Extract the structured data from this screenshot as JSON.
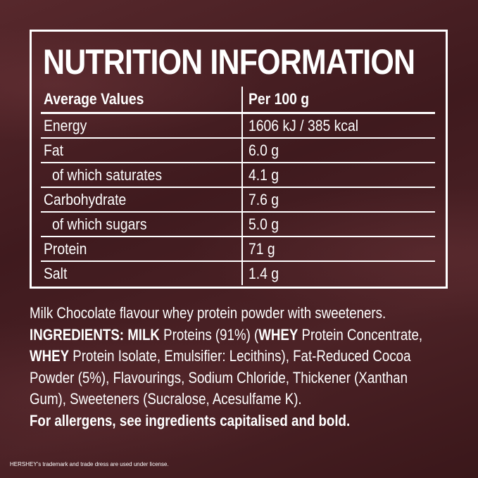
{
  "panel": {
    "title": "NUTRITION INFORMATION",
    "header": [
      "Average Values",
      "Per 100 g"
    ],
    "rows": [
      {
        "label": "Energy",
        "value": "1606 kJ / 385 kcal",
        "indent": false
      },
      {
        "label": "Fat",
        "value": "6.0 g",
        "indent": false
      },
      {
        "label": "of which saturates",
        "value": "4.1 g",
        "indent": true
      },
      {
        "label": "Carbohydrate",
        "value": "7.6 g",
        "indent": false
      },
      {
        "label": "of which sugars",
        "value": "5.0 g",
        "indent": true
      },
      {
        "label": "Protein",
        "value": "71 g",
        "indent": false
      },
      {
        "label": "Salt",
        "value": "1.4 g",
        "indent": false
      }
    ]
  },
  "description": "Milk Chocolate flavour whey protein powder with sweeteners.",
  "ingredients": [
    {
      "text": "INGREDIENTS: MILK",
      "bold": true
    },
    {
      "text": " Proteins (91%) (",
      "bold": false
    },
    {
      "text": "WHEY",
      "bold": true
    },
    {
      "text": " Protein Concentrate, ",
      "bold": false
    },
    {
      "text": "WHEY",
      "bold": true
    },
    {
      "text": " Protein Isolate, Emulsifier: Lecithins), Fat-Reduced Cocoa Powder (5%), Flavourings, Sodium Chloride, Thickener (Xanthan Gum), Sweeteners (Sucralose, Acesulfame K).",
      "bold": false
    }
  ],
  "allergens": "For allergens, see ingredients capitalised and bold.",
  "footer": "HERSHEY's trademark and trade dress are used under license."
}
